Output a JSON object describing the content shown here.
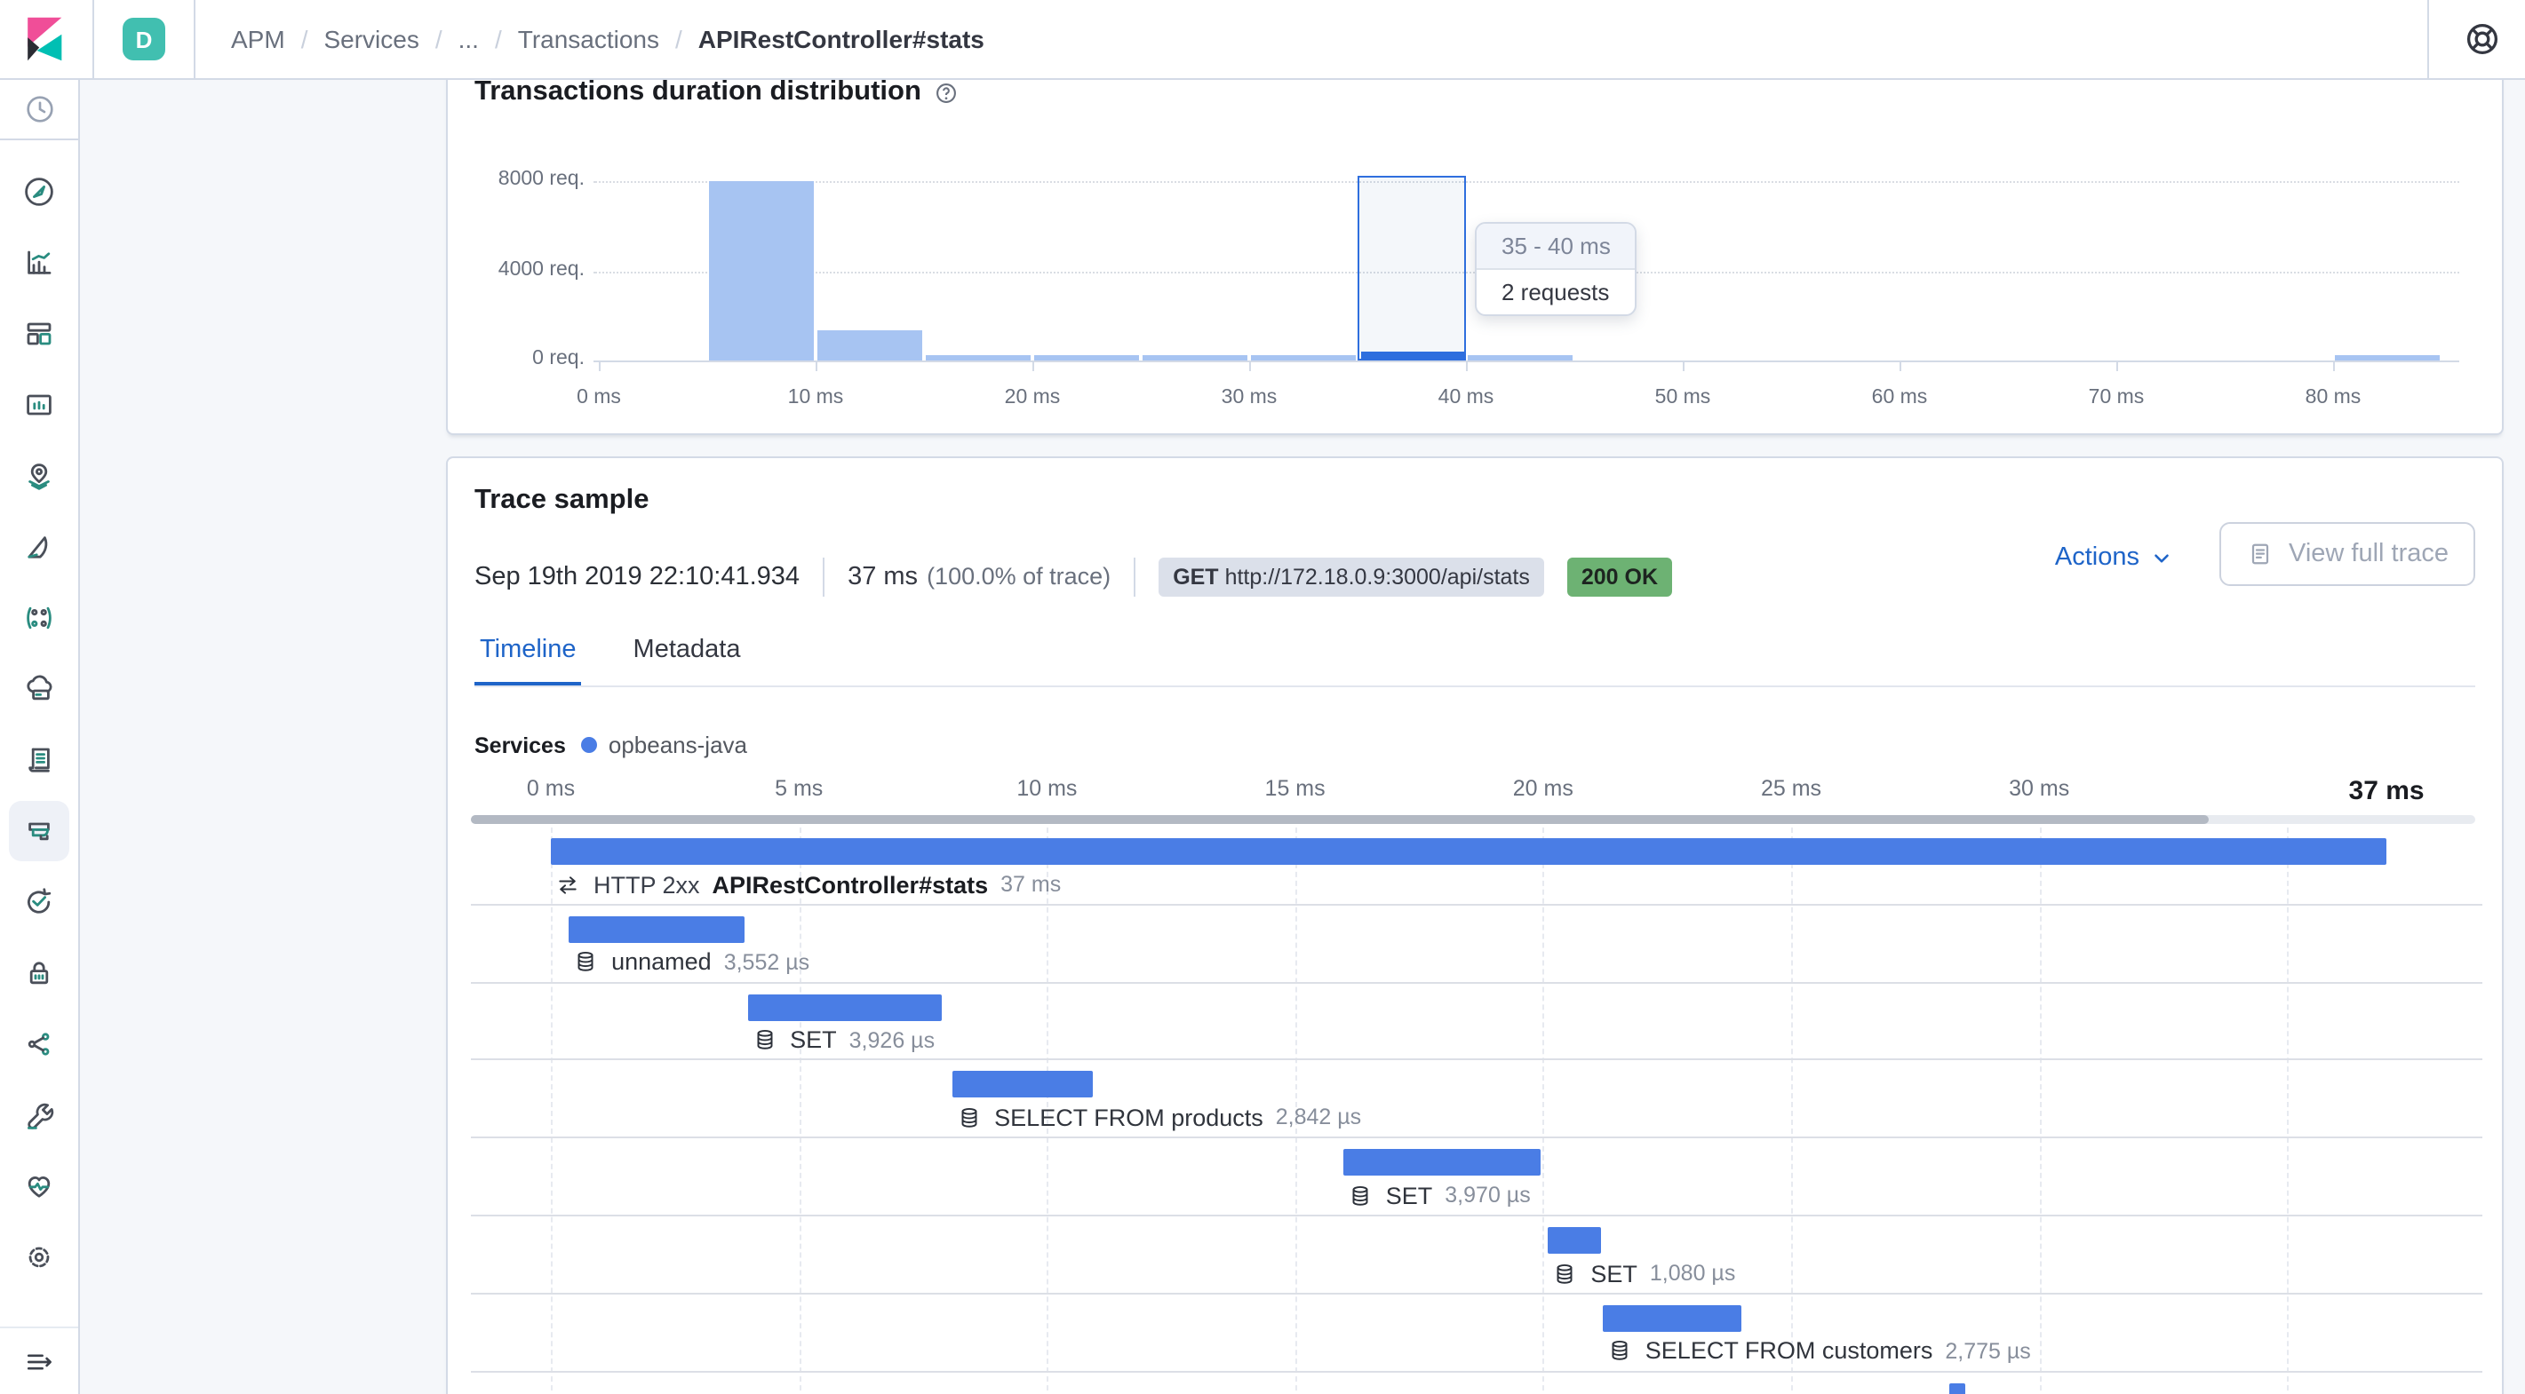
{
  "colors": {
    "accent_blue": "#1e64c8",
    "histogram_bar": "#a7c4f2",
    "histogram_bar_selected": "#2f6fde",
    "waterfall_bar": "#4a7de5",
    "status_green": "#6db273",
    "brand_teal": "#41bfb0",
    "logo_pink": "#f04e98",
    "logo_teal": "#00bfb3"
  },
  "topbar": {
    "space_badge": "D",
    "breadcrumbs": [
      "APM",
      "Services",
      "...",
      "Transactions",
      "APIRestController#stats"
    ],
    "help_icon": "life-ring"
  },
  "sidebar": {
    "recent_icon": "clock",
    "active_item": "apm",
    "items": [
      "discover",
      "visualize",
      "dashboard",
      "canvas",
      "maps",
      "machine-learning",
      "graph",
      "infrastructure",
      "logs",
      "apm",
      "uptime",
      "security",
      "code",
      "dev-tools",
      "stack-monitoring",
      "management"
    ],
    "collapse_icon": "collapse-menu"
  },
  "duration_chart": {
    "title": "Transactions duration distribution",
    "help_icon": "question-in-circle",
    "chart_data": {
      "type": "bar",
      "title": "Transactions duration distribution",
      "xlabel": "ms",
      "ylabel": "req.",
      "ylim": [
        0,
        8400
      ],
      "grid": "horizontal-dotted",
      "bucket_size_ms": 5,
      "y_ticks": [
        {
          "label": "0 req.",
          "value": 0
        },
        {
          "label": "4000 req.",
          "value": 4000
        },
        {
          "label": "8000 req.",
          "value": 8000
        }
      ],
      "x_ticks": [
        {
          "label": "0 ms",
          "ms": 0
        },
        {
          "label": "10 ms",
          "ms": 10
        },
        {
          "label": "20 ms",
          "ms": 20
        },
        {
          "label": "30 ms",
          "ms": 30
        },
        {
          "label": "40 ms",
          "ms": 40
        },
        {
          "label": "50 ms",
          "ms": 50
        },
        {
          "label": "60 ms",
          "ms": 60
        },
        {
          "label": "70 ms",
          "ms": 70
        },
        {
          "label": "80 ms",
          "ms": 80
        }
      ],
      "buckets": [
        {
          "start_ms": 0,
          "count": 0
        },
        {
          "start_ms": 5,
          "count": 8000
        },
        {
          "start_ms": 10,
          "count": 1370
        },
        {
          "start_ms": 15,
          "count": 220
        },
        {
          "start_ms": 20,
          "count": 220
        },
        {
          "start_ms": 25,
          "count": 220
        },
        {
          "start_ms": 30,
          "count": 220
        },
        {
          "start_ms": 35,
          "count": 2,
          "selected": true
        },
        {
          "start_ms": 40,
          "count": 220
        },
        {
          "start_ms": 45,
          "count": 0
        },
        {
          "start_ms": 50,
          "count": 0
        },
        {
          "start_ms": 55,
          "count": 0
        },
        {
          "start_ms": 60,
          "count": 0
        },
        {
          "start_ms": 65,
          "count": 0
        },
        {
          "start_ms": 70,
          "count": 0
        },
        {
          "start_ms": 75,
          "count": 0
        },
        {
          "start_ms": 80,
          "count": 180
        }
      ],
      "tooltip": {
        "title": "35 - 40 ms",
        "value": "2 requests"
      }
    }
  },
  "trace": {
    "title": "Trace sample",
    "timestamp": "Sep 19th 2019 22:10:41.934",
    "duration": "37 ms",
    "duration_note": "(100.0% of trace)",
    "method_badge": {
      "method": "GET",
      "url": "http://172.18.0.9:3000/api/stats"
    },
    "status_badge": "200 OK",
    "actions_label": "Actions",
    "view_full_trace_label": "View full trace",
    "tabs": [
      {
        "label": "Timeline",
        "active": true
      },
      {
        "label": "Metadata",
        "active": false
      }
    ],
    "services_label": "Services",
    "legend": [
      {
        "name": "opbeans-java",
        "color": "#4a7de5"
      }
    ],
    "timeline_axis": {
      "ticks": [
        {
          "label": "0 ms",
          "ms": 0
        },
        {
          "label": "5 ms",
          "ms": 5
        },
        {
          "label": "10 ms",
          "ms": 10
        },
        {
          "label": "15 ms",
          "ms": 15
        },
        {
          "label": "20 ms",
          "ms": 20
        },
        {
          "label": "25 ms",
          "ms": 25
        },
        {
          "label": "30 ms",
          "ms": 30
        }
      ],
      "end_label": {
        "label": "37 ms",
        "ms": 37
      }
    },
    "waterfall": [
      {
        "icon": "transaction",
        "type_label": "HTTP 2xx",
        "name": "APIRestController#stats",
        "duration": "37 ms",
        "start_ms": 0,
        "width_ms": 37,
        "emphasis": true
      },
      {
        "icon": "database",
        "name": "unnamed",
        "duration": "3,552 µs",
        "start_ms": 0.36,
        "width_ms": 3.55
      },
      {
        "icon": "database",
        "name": "SET",
        "duration": "3,926 µs",
        "start_ms": 3.96,
        "width_ms": 3.93
      },
      {
        "icon": "database",
        "name": "SELECT FROM products",
        "duration": "2,842 µs",
        "start_ms": 8.08,
        "width_ms": 2.84
      },
      {
        "icon": "database",
        "name": "SET",
        "duration": "3,970 µs",
        "start_ms": 15.97,
        "width_ms": 3.97
      },
      {
        "icon": "database",
        "name": "SET",
        "duration": "1,080 µs",
        "start_ms": 20.1,
        "width_ms": 1.08
      },
      {
        "icon": "database",
        "name": "SELECT FROM customers",
        "duration": "2,775 µs",
        "start_ms": 21.2,
        "width_ms": 2.78
      },
      {
        "icon": null,
        "name": "",
        "duration": "",
        "start_ms": 28.2,
        "width_ms": 0.3,
        "partial": true
      }
    ]
  }
}
